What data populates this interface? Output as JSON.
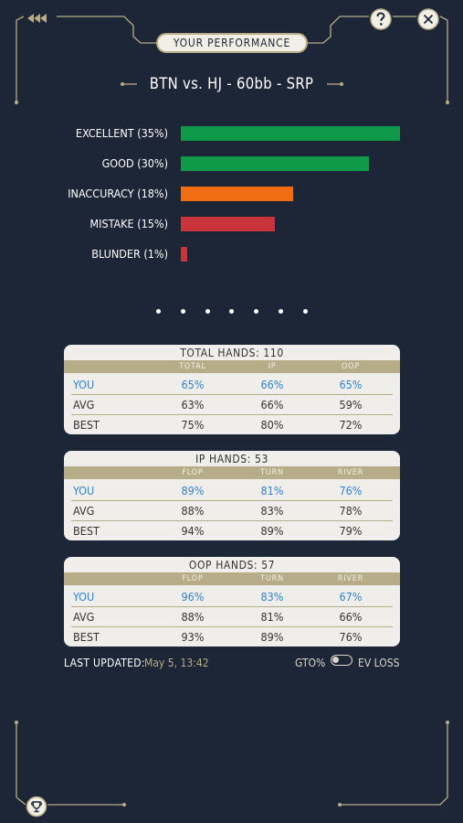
{
  "header": {
    "title": "YOUR PERFORMANCE",
    "back_icon": "triple-chevron-left-icon",
    "help_icon": "question-icon",
    "close_icon": "close-icon"
  },
  "spot": {
    "title": "BTN vs. HJ - 60bb - SRP"
  },
  "breakdown": [
    {
      "label": "EXCELLENT (35%)",
      "value": 35,
      "color": "#0e9a49"
    },
    {
      "label": "GOOD (30%)",
      "value": 30,
      "color": "#0e9a49"
    },
    {
      "label": "INACCURACY (18%)",
      "value": 18,
      "color": "#f06d12"
    },
    {
      "label": "MISTAKE (15%)",
      "value": 15,
      "color": "#c8343a"
    },
    {
      "label": "BLUNDER (1%)",
      "value": 1,
      "color": "#c8343a"
    }
  ],
  "pagination": {
    "count": 7
  },
  "cards": [
    {
      "title": "TOTAL HANDS: 110",
      "columns": [
        "TOTAL",
        "IP",
        "OOP"
      ],
      "rows": [
        {
          "label": "YOU",
          "values": [
            "65%",
            "66%",
            "65%"
          ]
        },
        {
          "label": "AVG",
          "values": [
            "63%",
            "66%",
            "59%"
          ]
        },
        {
          "label": "BEST",
          "values": [
            "75%",
            "80%",
            "72%"
          ]
        }
      ]
    },
    {
      "title": "IP HANDS: 53",
      "columns": [
        "FLOP",
        "TURN",
        "RIVER"
      ],
      "rows": [
        {
          "label": "YOU",
          "values": [
            "89%",
            "81%",
            "76%"
          ]
        },
        {
          "label": "AVG",
          "values": [
            "88%",
            "83%",
            "78%"
          ]
        },
        {
          "label": "BEST",
          "values": [
            "94%",
            "89%",
            "79%"
          ]
        }
      ]
    },
    {
      "title": "OOP HANDS: 57",
      "columns": [
        "FLOP",
        "TURN",
        "RIVER"
      ],
      "rows": [
        {
          "label": "YOU",
          "values": [
            "96%",
            "83%",
            "67%"
          ]
        },
        {
          "label": "AVG",
          "values": [
            "88%",
            "81%",
            "66%"
          ]
        },
        {
          "label": "BEST",
          "values": [
            "93%",
            "89%",
            "76%"
          ]
        }
      ]
    }
  ],
  "footer": {
    "last_updated_label": "LAST UPDATED:",
    "last_updated_value": "May 5, 13:42",
    "toggle_left": "GTO%",
    "toggle_right": "EV LOSS"
  },
  "colors": {
    "background": "#1c2636",
    "gold": "#b6ad88",
    "you_blue": "#3182c9"
  },
  "bottom": {
    "trophy_icon": "trophy-icon"
  }
}
